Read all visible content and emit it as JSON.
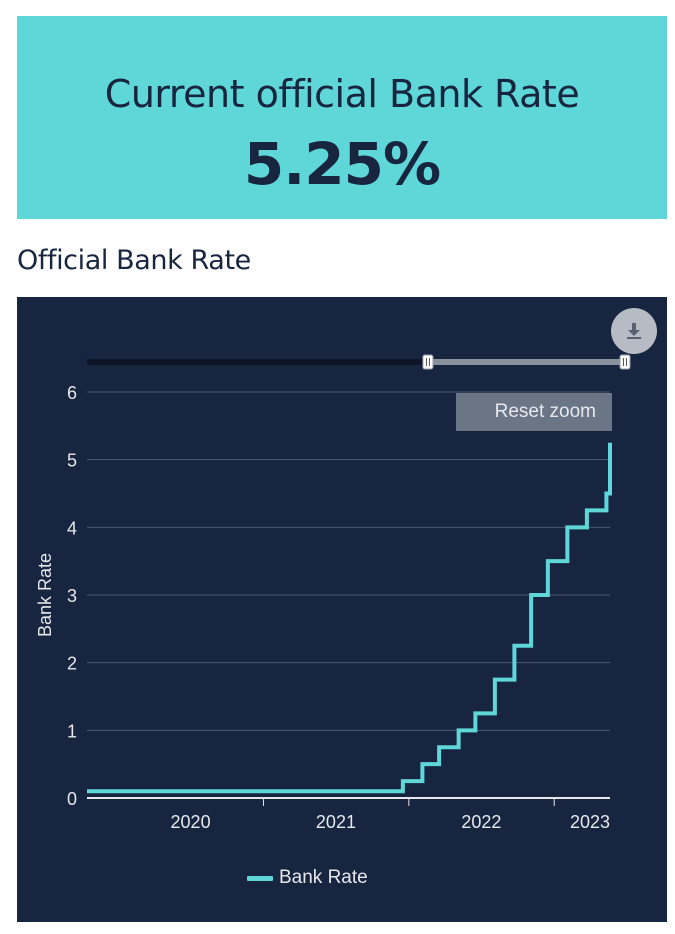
{
  "banner": {
    "label": "Current official Bank Rate",
    "value": "5.25%"
  },
  "section": {
    "title": "Official Bank Rate"
  },
  "toolbar": {
    "download_icon": "download-icon",
    "reset_zoom_label": "Reset zoom"
  },
  "colors": {
    "banner_bg": "#5fd7d8",
    "panel_bg": "#172540",
    "series": "#5fd7d8",
    "text_dark": "#17253f"
  },
  "chart_data": {
    "type": "line",
    "step": true,
    "title": "",
    "xlabel": "",
    "ylabel": "Bank Rate",
    "ylim": [
      0,
      6
    ],
    "yticks": [
      0,
      1,
      2,
      3,
      4,
      5,
      6
    ],
    "xticks": [
      "2020",
      "2021",
      "2022",
      "2023"
    ],
    "xlim": [
      "2019-10-15",
      "2023-05-20"
    ],
    "grid": true,
    "legend_position": "bottom",
    "series": [
      {
        "name": "Bank Rate",
        "points": [
          {
            "date": "2019-10-15",
            "value": 0.1
          },
          {
            "date": "2021-12-16",
            "value": 0.25
          },
          {
            "date": "2022-02-03",
            "value": 0.5
          },
          {
            "date": "2022-03-17",
            "value": 0.75
          },
          {
            "date": "2022-05-05",
            "value": 1.0
          },
          {
            "date": "2022-06-16",
            "value": 1.25
          },
          {
            "date": "2022-08-04",
            "value": 1.75
          },
          {
            "date": "2022-09-22",
            "value": 2.25
          },
          {
            "date": "2022-11-03",
            "value": 3.0
          },
          {
            "date": "2022-12-15",
            "value": 3.5
          },
          {
            "date": "2023-02-02",
            "value": 4.0
          },
          {
            "date": "2023-03-23",
            "value": 4.25
          },
          {
            "date": "2023-05-11",
            "value": 4.5
          },
          {
            "date": "2023-06-22",
            "value": 5.0
          },
          {
            "date": "2023-08-03",
            "value": 5.25
          },
          {
            "date": "2023-10-20",
            "value": 5.25
          }
        ]
      }
    ],
    "navigator": {
      "selected_range": [
        "2022-05-01",
        "2023-10-20"
      ]
    }
  }
}
